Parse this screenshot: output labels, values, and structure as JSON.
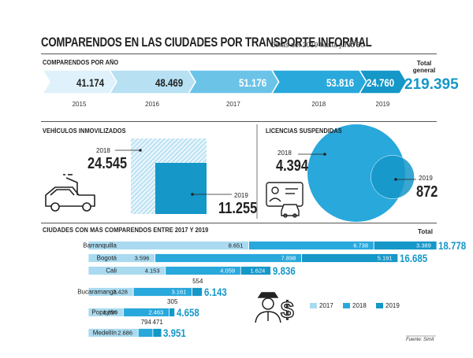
{
  "title": "COMPARENDOS EN LAS CIUDADES POR TRANSPORTE INFORMAL",
  "subtitle": "Cifras del 2019 hasta junio 30",
  "source": "Fuente: Simit",
  "colors": {
    "c2017": "#a9daf0",
    "c2018": "#29a8dc",
    "c2019": "#1597c8",
    "total": "#1597c8"
  },
  "chart_data": [
    {
      "type": "bar",
      "title": "COMPARENDOS POR AÑO",
      "categories": [
        "2015",
        "2016",
        "2017",
        "2018",
        "2019"
      ],
      "values": [
        41174,
        48469,
        51176,
        53816,
        24760
      ],
      "value_labels": [
        "41.174",
        "48.469",
        "51.176",
        "53.816",
        "24.760"
      ],
      "total_label": "Total general",
      "total": "219.395"
    },
    {
      "type": "area",
      "title": "VEHÍCULOS INMOVILIZADOS",
      "categories": [
        "2018",
        "2019"
      ],
      "values": [
        24545,
        11255
      ],
      "value_labels": [
        "24.545",
        "11.255"
      ]
    },
    {
      "type": "scatter",
      "title": "LICENCIAS SUSPENDIDAS",
      "categories": [
        "2018",
        "2019"
      ],
      "values": [
        4394,
        872
      ],
      "value_labels": [
        "4.394",
        "872"
      ]
    },
    {
      "type": "bar",
      "title": "CIUDADES CON MÁS COMPARENDOS ENTRE 2017 Y 2019",
      "total_label": "Total",
      "categories": [
        "Barranquilla",
        "Bogotá",
        "Cali",
        "Bucaramanga",
        "Popayán",
        "Medellín"
      ],
      "series": [
        {
          "name": "2017",
          "values": [
            8651,
            3596,
            4153,
            2428,
            1890,
            2686
          ],
          "labels": [
            "8.651",
            "3.596",
            "4.153",
            "2.428",
            "1.890",
            "2.686"
          ]
        },
        {
          "name": "2018",
          "values": [
            6738,
            7898,
            4059,
            3161,
            2463,
            794
          ],
          "labels": [
            "6.738",
            "7.898",
            "4.059",
            "3.161",
            "2.463",
            "794"
          ]
        },
        {
          "name": "2019",
          "values": [
            3389,
            5191,
            1624,
            554,
            305,
            471
          ],
          "labels": [
            "3.389",
            "5.191",
            "1.624",
            "554",
            "305",
            "471"
          ]
        }
      ],
      "totals": [
        "18.778",
        "16.685",
        "9.836",
        "6.143",
        "4.658",
        "3.951"
      ],
      "legend": [
        "2017",
        "2018",
        "2019"
      ]
    }
  ]
}
